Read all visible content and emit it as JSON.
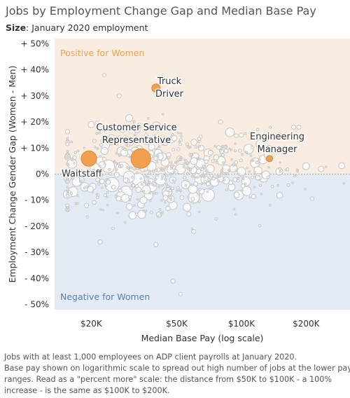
{
  "header": {
    "title": "Jobs by Employment Change Gap and Median Base Pay",
    "subtitle_label": "Size",
    "subtitle_text": ": January 2020 employment"
  },
  "footer": {
    "lines": [
      "Jobs with at least 1,000 employees on ADP client payrolls at January 2020.",
      "Base pay shown on logarithmic scale to spread out high number of jobs at the lower pay",
      "ranges. Read as a \"percent more\" scale: the distance from $50K to $100K - a 100%",
      "increase - is the same as $100K to $200K."
    ]
  },
  "colors": {
    "positive_region": "#f8ede0",
    "negative_region": "#e4ebf5",
    "positive_label": "#f0a050",
    "negative_label": "#5b7fa8",
    "highlight": "#f0a050",
    "highlight_stroke": "#d98a3a",
    "bubble_fill": "#ffffff",
    "bubble_stroke": "#c4c4c4"
  },
  "chart_data": {
    "type": "scatter",
    "ylabel": "Employment Change Gender Gap (Women - Men)",
    "xlabel": "Median Base Pay (log scale)",
    "x_scale": "log",
    "xlim": [
      13500,
      320000
    ],
    "ylim": [
      -52,
      52
    ],
    "x_ticks": [
      {
        "value": 20000,
        "label": "$20K"
      },
      {
        "value": 50000,
        "label": "$50K"
      },
      {
        "value": 100000,
        "label": "$100K"
      },
      {
        "value": 200000,
        "label": "$200K"
      }
    ],
    "y_ticks": [
      {
        "value": 50,
        "label": "+ 50%"
      },
      {
        "value": 40,
        "label": "+ 40%"
      },
      {
        "value": 30,
        "label": "+ 30%"
      },
      {
        "value": 20,
        "label": "+ 20%"
      },
      {
        "value": 10,
        "label": "+ 10%"
      },
      {
        "value": 0,
        "label": "0%"
      },
      {
        "value": -10,
        "label": "- 10%"
      },
      {
        "value": -20,
        "label": "- 20%"
      },
      {
        "value": -30,
        "label": "- 30%"
      },
      {
        "value": -40,
        "label": "- 40%"
      },
      {
        "value": -50,
        "label": "- 50%"
      }
    ],
    "regions": [
      {
        "label": "Positive for Women"
      },
      {
        "label": "Negative for Women"
      }
    ],
    "highlighted": [
      {
        "label_lines": [
          "Waitstaff"
        ],
        "x": 19500,
        "y": 6,
        "size": 11
      },
      {
        "label_lines": [
          "Customer Service",
          "Representative"
        ],
        "x": 34000,
        "y": 6,
        "size": 14
      },
      {
        "label_lines": [
          "Truck",
          "Driver"
        ],
        "x": 40000,
        "y": 33,
        "size": 6
      },
      {
        "label_lines": [
          "Engineering",
          "Manager"
        ],
        "x": 135000,
        "y": 6,
        "size": 4.5
      }
    ],
    "background_points": {
      "note": "several hundred unlabeled jobs, rendered as hollow gray bubbles",
      "points": [
        [
          24000,
          3,
          9
        ],
        [
          21000,
          2,
          8
        ],
        [
          28000,
          2,
          10
        ],
        [
          30000,
          -1,
          8
        ],
        [
          33000,
          -2,
          9
        ],
        [
          25000,
          -4,
          10
        ],
        [
          29000,
          -7,
          9
        ],
        [
          42000,
          -2,
          8
        ],
        [
          60000,
          -9,
          8
        ],
        [
          70000,
          -8,
          9
        ],
        [
          45000,
          -7,
          7
        ],
        [
          38000,
          3,
          7
        ],
        [
          52000,
          2,
          7
        ],
        [
          65000,
          1,
          6
        ],
        [
          85000,
          2,
          6
        ],
        [
          100000,
          1,
          6
        ],
        [
          18000,
          0,
          6
        ],
        [
          22000,
          5,
          6
        ],
        [
          55000,
          -4,
          6
        ],
        [
          48000,
          -12,
          6
        ],
        [
          75000,
          -3,
          6
        ],
        [
          120000,
          -1,
          5
        ],
        [
          90000,
          -5,
          5
        ],
        [
          150000,
          1,
          5
        ],
        [
          200000,
          3,
          5
        ],
        [
          235000,
          2,
          4
        ],
        [
          60000,
          5,
          5
        ],
        [
          35000,
          -10,
          5
        ],
        [
          20000,
          19,
          4.5
        ],
        [
          28000,
          17,
          4
        ],
        [
          19000,
          -12,
          3
        ],
        [
          40000,
          18,
          3
        ],
        [
          27000,
          30,
          3
        ],
        [
          23000,
          38,
          2.5
        ],
        [
          48000,
          -41,
          3
        ],
        [
          52000,
          -46,
          2.5
        ],
        [
          150000,
          15,
          3
        ],
        [
          175000,
          18,
          3
        ],
        [
          185000,
          18,
          3
        ],
        [
          100000,
          15,
          3
        ],
        [
          80000,
          20,
          3
        ],
        [
          22000,
          -26,
          3
        ],
        [
          60000,
          -22,
          3
        ],
        [
          40000,
          -27,
          3
        ],
        [
          30000,
          8,
          5
        ],
        [
          26000,
          12,
          4
        ],
        [
          65000,
          10,
          4
        ],
        [
          44000,
          12,
          4
        ],
        [
          36000,
          -6,
          6
        ],
        [
          95000,
          -8,
          4
        ]
      ]
    }
  }
}
